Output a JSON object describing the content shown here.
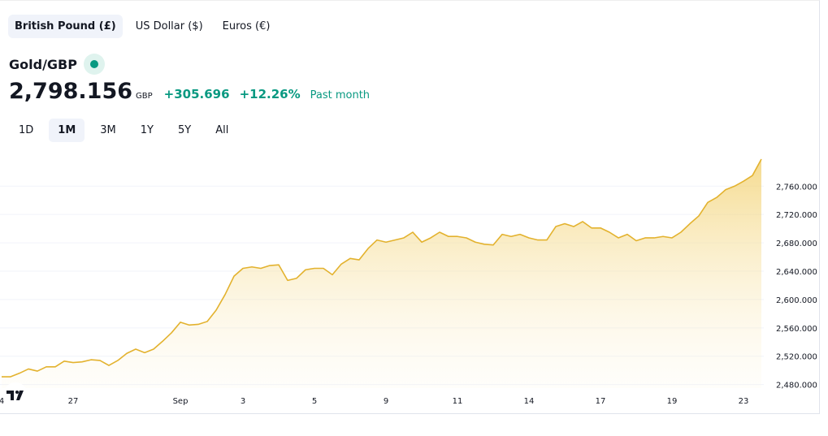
{
  "tabs": [
    "British Pound (£)",
    "US Dollar ($)",
    "Euros (€)"
  ],
  "header": {
    "symbol": "Gold/GBP",
    "price": "2,798.156",
    "currency": "GBP",
    "change": "+305.696",
    "change_percent": "+12.26%",
    "period": "Past month"
  },
  "ranges": [
    "1D",
    "1M",
    "3M",
    "1Y",
    "5Y",
    "All"
  ],
  "chart_data": {
    "type": "area",
    "color": "#e3b22e",
    "grid": true,
    "categories": [
      "4",
      null,
      null,
      null,
      null,
      null,
      null,
      null,
      "27",
      null,
      null,
      null,
      null,
      null,
      null,
      null,
      null,
      null,
      null,
      null,
      "Sep",
      null,
      null,
      null,
      null,
      null,
      null,
      "3",
      null,
      null,
      null,
      null,
      null,
      null,
      null,
      "5",
      null,
      null,
      null,
      null,
      null,
      null,
      null,
      "9",
      null,
      null,
      null,
      null,
      null,
      null,
      null,
      "11",
      null,
      null,
      null,
      null,
      null,
      null,
      null,
      "14",
      null,
      null,
      null,
      null,
      null,
      null,
      null,
      "17",
      null,
      null,
      null,
      null,
      null,
      null,
      null,
      "19",
      null,
      null,
      null,
      null,
      null,
      null,
      null,
      "23",
      null,
      null
    ],
    "values": [
      2491,
      2491,
      2496,
      2502,
      2499,
      2505,
      2505,
      2513,
      2511,
      2512,
      2515,
      2514,
      2507,
      2514,
      2524,
      2530,
      2525,
      2530,
      2541,
      2553,
      2568,
      2564,
      2565,
      2569,
      2585,
      2607,
      2633,
      2644,
      2646,
      2644,
      2648,
      2649,
      2627,
      2630,
      2642,
      2644,
      2644,
      2635,
      2650,
      2658,
      2656,
      2672,
      2684,
      2681,
      2684,
      2687,
      2695,
      2681,
      2687,
      2695,
      2689,
      2689,
      2687,
      2681,
      2678,
      2677,
      2692,
      2689,
      2692,
      2687,
      2684,
      2684,
      2703,
      2707,
      2703,
      2710,
      2701,
      2701,
      2695,
      2687,
      2692,
      2683,
      2687,
      2687,
      2689,
      2687,
      2695,
      2707,
      2718,
      2737,
      2744,
      2755,
      2760,
      2767,
      2775,
      2798.156
    ],
    "ylim": [
      2475,
      2805
    ],
    "yticks": [
      {
        "value": 2480,
        "label": "2,480.000"
      },
      {
        "value": 2520,
        "label": "2,520.000"
      },
      {
        "value": 2560,
        "label": "2,560.000"
      },
      {
        "value": 2600,
        "label": "2,600.000"
      },
      {
        "value": 2640,
        "label": "2,640.000"
      },
      {
        "value": 2680,
        "label": "2,680.000"
      },
      {
        "value": 2720,
        "label": "2,720.000"
      },
      {
        "value": 2760,
        "label": "2,760.000"
      }
    ]
  }
}
